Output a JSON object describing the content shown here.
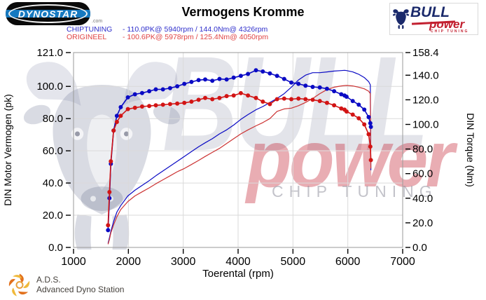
{
  "header": {
    "dynostar_logo": {
      "text": "DYNOSTAR",
      "suffix": ".com"
    },
    "title": "Vermogens Kromme",
    "stats": [
      {
        "name": "CHIPTUNING",
        "details": "- 110.0PK@ 5940rpm / 144.0Nm@ 4326rpm",
        "color": "#2e2ecb"
      },
      {
        "name": "ORIGINEEL",
        "details": "- 100.6PK@ 5978rpm / 125.4Nm@ 4050rpm",
        "color": "#e04343"
      }
    ],
    "bullpower_logo": {
      "line1": "BULL",
      "line2": "power",
      "line3": "CHIP TUNING"
    }
  },
  "watermark": {
    "word1": "BULL",
    "word2": "power",
    "word3": "CHIP TUNING"
  },
  "footer": {
    "abbr": "A.D.S.",
    "name": "Advanced Dyno Station"
  },
  "chart_data": {
    "type": "line",
    "title": "Vermogens Kromme",
    "grid": true,
    "legend_position": "none",
    "x_axis": {
      "label": "Toerental (rpm)",
      "min": 1000,
      "max": 7000,
      "ticks": [
        1000,
        2000,
        3000,
        4000,
        5000,
        6000,
        7000
      ]
    },
    "y_left": {
      "label": "DIN Motor Vermogen (pk)",
      "min": 0,
      "max": 121,
      "ticks": [
        0,
        20,
        40,
        60,
        80,
        100,
        121
      ],
      "tick_labels": [
        "0.0",
        "20.0",
        "40.0",
        "60.0",
        "80.0",
        "100.0",
        "121.0"
      ]
    },
    "y_right": {
      "label": "DIN Torque (Nm)",
      "min": 0,
      "max": 158.4,
      "ticks": [
        0,
        20,
        40,
        60,
        80,
        100,
        120,
        140,
        158.4
      ],
      "tick_labels": [
        "0.0",
        "20.0",
        "40.0",
        "60.0",
        "80.0",
        "100.0",
        "120.0",
        "140.0",
        "158.4"
      ]
    },
    "peaks": {
      "chiptuning": {
        "power_pk": 110.0,
        "power_rpm": 5940,
        "torque_nm": 144.0,
        "torque_rpm": 4326
      },
      "origineel": {
        "power_pk": 100.6,
        "power_rpm": 5978,
        "torque_nm": 125.4,
        "torque_rpm": 4050
      }
    },
    "rpm": [
      1630,
      1655,
      1680,
      1730,
      1790,
      1860,
      1990,
      2120,
      2250,
      2380,
      2500,
      2630,
      2760,
      2890,
      3020,
      3150,
      3280,
      3400,
      3530,
      3660,
      3790,
      3920,
      4050,
      4180,
      4326,
      4450,
      4580,
      4710,
      4840,
      4970,
      5100,
      5230,
      5360,
      5490,
      5620,
      5750,
      5880,
      5940,
      5978,
      6090,
      6200,
      6300,
      6380,
      6410,
      6420
    ],
    "series": [
      {
        "name": "CHIPTUNING vermogen (pk)",
        "axis": "left",
        "color": "#0a0ac4",
        "width": 1.2,
        "markers": false,
        "values": [
          2.5,
          6,
          10,
          16,
          22,
          26,
          32,
          35.5,
          38.5,
          41.5,
          44.5,
          47.5,
          50.5,
          53.5,
          56.5,
          59.5,
          62.5,
          65,
          67.5,
          70.5,
          73,
          76,
          79.5,
          82.5,
          85.5,
          87.5,
          90,
          92.5,
          95.5,
          99.5,
          104,
          107,
          108.5,
          108.5,
          109,
          109.5,
          109.8,
          110,
          109.8,
          109,
          107.5,
          105.5,
          103,
          101,
          48
        ]
      },
      {
        "name": "ORIGINEEL vermogen (pk)",
        "axis": "left",
        "color": "#cc3333",
        "width": 1.2,
        "markers": false,
        "values": [
          2,
          5,
          9,
          14,
          19,
          23.5,
          28.5,
          32,
          34.5,
          37,
          39.5,
          42,
          44.5,
          47,
          49,
          51.5,
          54,
          56.5,
          59,
          61.5,
          64.5,
          67.5,
          70.5,
          73,
          75.5,
          77.5,
          80,
          84.5,
          86,
          86.5,
          88,
          90,
          92.5,
          95.5,
          98,
          99.5,
          100.3,
          100.5,
          100.6,
          100.3,
          99.5,
          98.5,
          97,
          95.5,
          49
        ]
      },
      {
        "name": "CHIPTUNING koppel (Nm)",
        "axis": "right",
        "color": "#0a0ac4",
        "width": 1.6,
        "markers": true,
        "values": [
          14,
          40,
          68,
          95,
          107,
          114,
          122,
          124.5,
          125.5,
          127,
          128.5,
          128.5,
          129.5,
          131,
          133,
          134.5,
          136,
          136.5,
          135.5,
          137,
          136.5,
          138,
          139.5,
          141,
          144,
          143,
          141.5,
          139.5,
          137,
          134,
          133,
          131.5,
          130.5,
          130,
          129,
          127,
          124.5,
          123.5,
          122.5,
          119,
          116,
          112,
          106,
          101,
          98
        ]
      },
      {
        "name": "ORIGINEEL koppel (Nm)",
        "axis": "right",
        "color": "#d21414",
        "width": 1.6,
        "markers": true,
        "values": [
          18,
          45,
          70,
          95,
          102,
          107,
          112.5,
          113.5,
          114.5,
          115,
          115.5,
          116,
          116.5,
          117,
          117.5,
          118.5,
          120,
          121.5,
          120.5,
          121.5,
          123,
          123.5,
          125.4,
          123.5,
          121.5,
          118.5,
          116.5,
          120.5,
          121,
          120.5,
          121,
          120.5,
          120,
          119,
          117.5,
          115.5,
          113,
          112,
          110.5,
          108,
          105,
          100,
          92,
          82,
          71
        ]
      }
    ]
  }
}
